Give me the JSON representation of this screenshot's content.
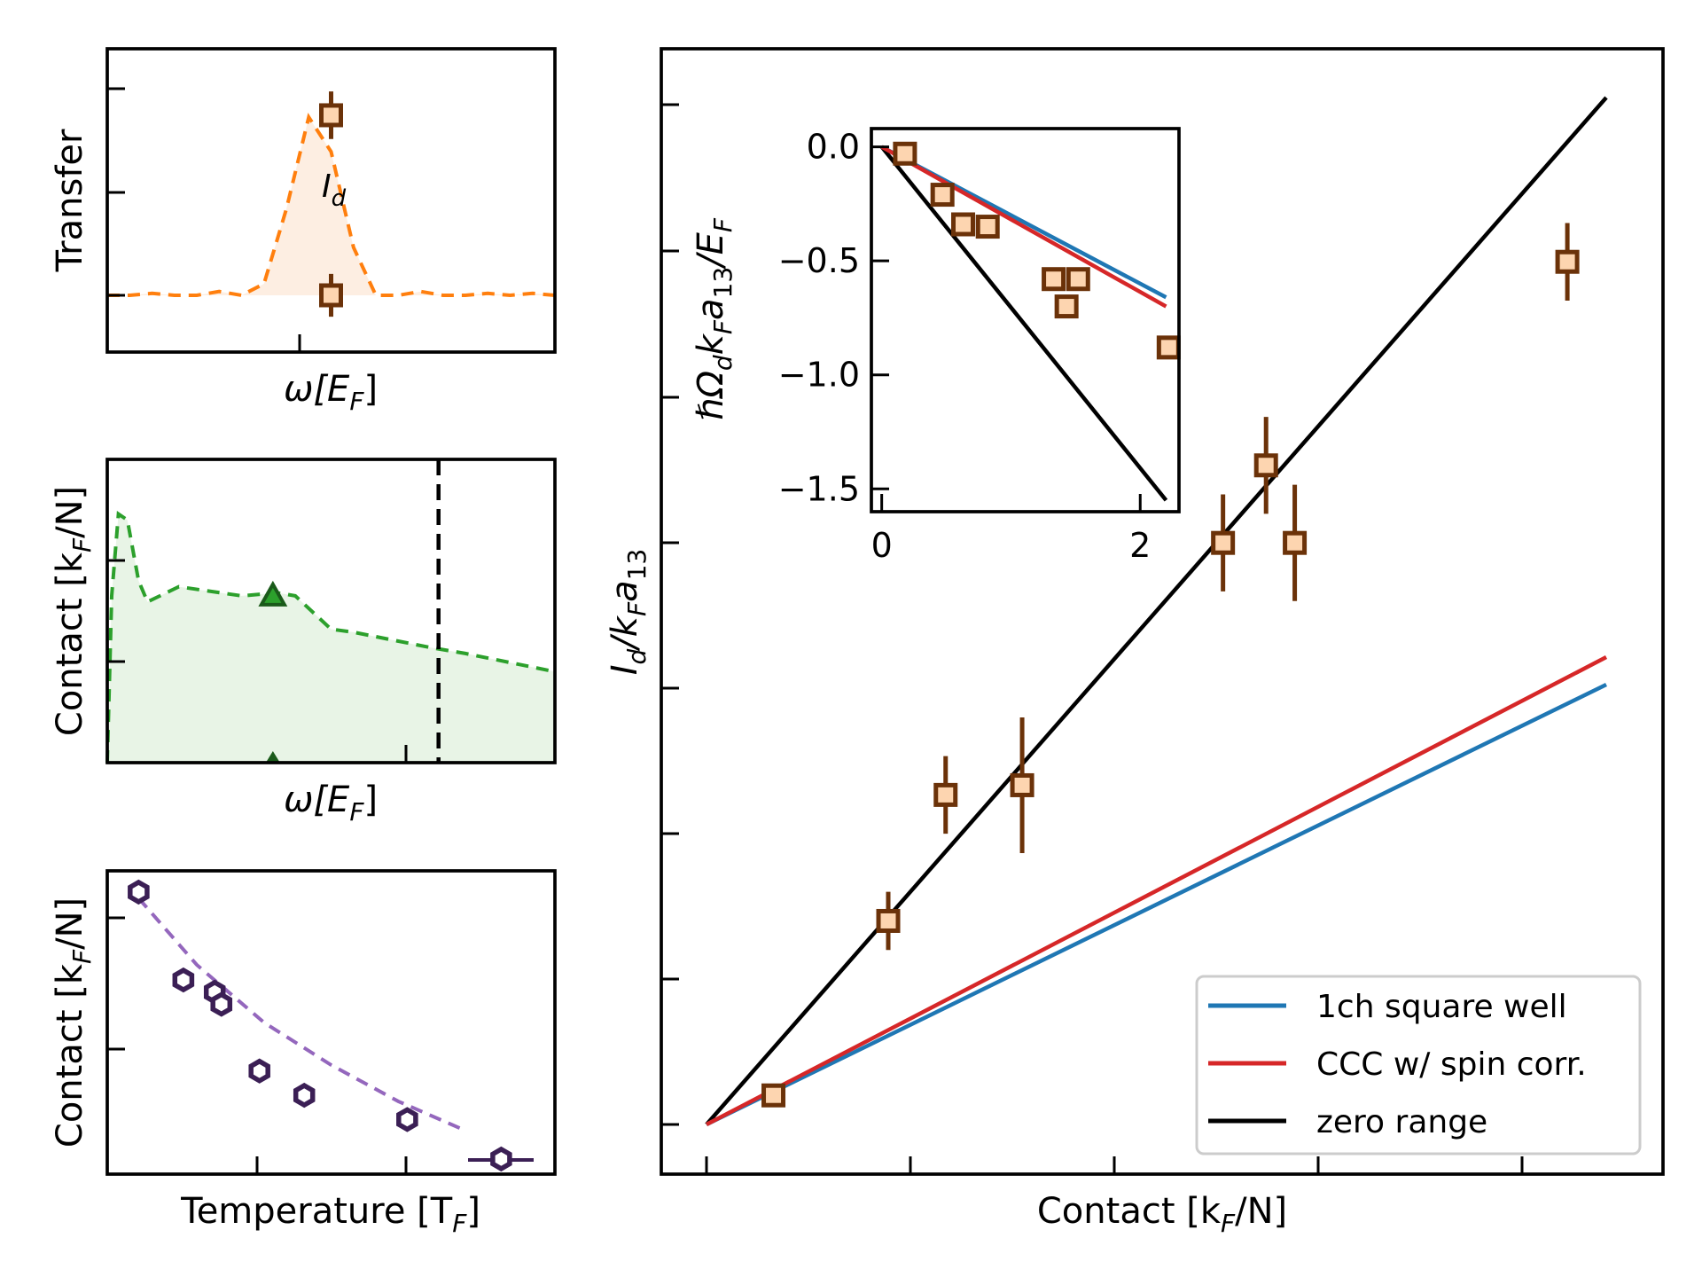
{
  "colors": {
    "orange": "#ff7f0e",
    "orange_fill": "#fdeee2",
    "green": "#2ca02c",
    "green_fill": "#e8f4e6",
    "dark_green": "#1a5a1a",
    "purple": "#9467bd",
    "hex_marker": "#3b1f55",
    "marker_edge": "#6b3209",
    "marker_face": "#fdd5b0",
    "blue": "#1f77b4",
    "red": "#d62728",
    "black": "#000000"
  },
  "panel_a": {
    "ylabel": "Transfer",
    "xlabel_main": "ω[E",
    "xlabel_sub": "F",
    "xlabel_end": "]",
    "peak_label_main": "I",
    "peak_label_sub": "d"
  },
  "panel_b": {
    "ylabel_main": "Contact [k",
    "ylabel_sub": "F",
    "ylabel_end": "/N]",
    "xlabel_main": "ω[E",
    "xlabel_sub": "F",
    "xlabel_end": "]"
  },
  "panel_c": {
    "ylabel_main": "Contact [k",
    "ylabel_sub": "F",
    "ylabel_end": "/N]",
    "xlabel_main": "Temperature [T",
    "xlabel_sub": "F",
    "xlabel_end": "]"
  },
  "main_panel": {
    "xlabel_main": "Contact [k",
    "xlabel_sub": "F",
    "xlabel_end": "/N]",
    "ylabel_parts": [
      "I",
      "d",
      "/k",
      "F",
      "a",
      "13"
    ]
  },
  "inset": {
    "ylabel_parts": [
      "ℏΩ",
      "d",
      "k",
      "F",
      "a",
      "13",
      "/E",
      "F"
    ]
  },
  "legend": [
    {
      "label": "1ch square well",
      "color": "#1f77b4"
    },
    {
      "label": "CCC w/ spin corr.",
      "color": "#d62728"
    },
    {
      "label": "zero range",
      "color": "#000000"
    }
  ],
  "chart_data": [
    {
      "type": "line",
      "panel": "transfer spectrum",
      "ylabel": "Transfer",
      "xlabel": "ω[E_F]",
      "x": [
        0,
        0.05,
        0.1,
        0.15,
        0.2,
        0.25,
        0.3,
        0.35,
        0.4,
        0.45,
        0.5,
        0.55,
        0.6,
        0.65,
        0.7,
        0.75,
        0.8,
        0.85,
        0.9,
        0.95,
        1.0
      ],
      "y": [
        0.0,
        0.0,
        0.01,
        0.0,
        0.0,
        0.02,
        0.0,
        0.06,
        0.45,
        0.93,
        0.75,
        0.25,
        0.0,
        0.0,
        0.02,
        0.0,
        0.0,
        0.01,
        0.0,
        0.01,
        0.0
      ],
      "points": [
        {
          "x": 0.5,
          "y": 0.94,
          "yerr": 0.2
        },
        {
          "x": 0.5,
          "y": 0.0,
          "yerr": 0.18
        }
      ],
      "annotation": "I_d"
    },
    {
      "type": "area",
      "panel": "contact spectrum",
      "ylabel": "Contact [k_F/N]",
      "xlabel": "ω[E_F]",
      "x": [
        0.0,
        0.01,
        0.025,
        0.045,
        0.07,
        0.09,
        0.16,
        0.3,
        0.38,
        0.42,
        0.5,
        0.55,
        0.72,
        0.8,
        1.0
      ],
      "y": [
        0.0,
        0.55,
        0.82,
        0.8,
        0.6,
        0.53,
        0.58,
        0.55,
        0.56,
        0.55,
        0.44,
        0.43,
        0.38,
        0.36,
        0.3
      ],
      "points": [
        {
          "x": 0.37,
          "y": 0.55,
          "marker": "triangle"
        },
        {
          "x": 0.37,
          "y": 0.0,
          "marker": "triangle-small"
        }
      ],
      "vline_x": 0.74
    },
    {
      "type": "scatter",
      "panel": "contact vs temperature",
      "ylabel": "Contact [k_F/N]",
      "xlabel": "Temperature [T_F]",
      "x": [
        0.07,
        0.17,
        0.24,
        0.255,
        0.34,
        0.44,
        0.67,
        0.88
      ],
      "y": [
        0.93,
        0.64,
        0.6,
        0.56,
        0.34,
        0.26,
        0.18,
        0.05
      ],
      "fit_x": [
        0.07,
        0.2,
        0.35,
        0.5,
        0.65,
        0.79
      ],
      "fit_y": [
        0.91,
        0.69,
        0.5,
        0.36,
        0.24,
        0.15
      ]
    },
    {
      "type": "scatter",
      "panel": "main",
      "xlabel": "Contact [k_F/N]",
      "ylabel": "I_d/k_F a_13",
      "points": [
        {
          "x": 0.07,
          "y": 0.03,
          "yerr": 0.01
        },
        {
          "x": 0.19,
          "y": 0.21,
          "yerr": 0.03
        },
        {
          "x": 0.25,
          "y": 0.34,
          "yerr": 0.04
        },
        {
          "x": 0.33,
          "y": 0.35,
          "yerr": 0.07
        },
        {
          "x": 0.54,
          "y": 0.6,
          "yerr": 0.05
        },
        {
          "x": 0.585,
          "y": 0.68,
          "yerr": 0.05
        },
        {
          "x": 0.615,
          "y": 0.6,
          "yerr": 0.06
        },
        {
          "x": 0.9,
          "y": 0.89,
          "yerr": 0.04
        }
      ],
      "series": [
        {
          "name": "1ch square well",
          "x": [
            0,
            0.9
          ],
          "y": [
            0,
            0.6
          ]
        },
        {
          "name": "CCC w/ spin corr.",
          "x": [
            0,
            0.9
          ],
          "y": [
            0,
            0.63
          ]
        },
        {
          "name": "zero range",
          "x": [
            0,
            0.9
          ],
          "y": [
            0,
            1.3
          ]
        }
      ]
    },
    {
      "type": "scatter",
      "panel": "inset",
      "ylabel": "ℏΩ_d k_F a_13/E_F",
      "xticks": [
        0,
        2
      ],
      "yticks": [
        0.0,
        -0.5,
        -1.0,
        -1.5
      ],
      "xlim": [
        -0.08,
        2.3
      ],
      "ylim": [
        -1.6,
        0.08
      ],
      "points": [
        {
          "x": 0.18,
          "y": -0.03
        },
        {
          "x": 0.47,
          "y": -0.21
        },
        {
          "x": 0.63,
          "y": -0.34
        },
        {
          "x": 0.82,
          "y": -0.35
        },
        {
          "x": 1.33,
          "y": -0.58
        },
        {
          "x": 1.43,
          "y": -0.7
        },
        {
          "x": 1.52,
          "y": -0.58
        },
        {
          "x": 2.22,
          "y": -0.88
        }
      ],
      "series": [
        {
          "name": "1ch square well",
          "x": [
            0,
            2.2
          ],
          "y": [
            0,
            -0.66
          ]
        },
        {
          "name": "CCC w/ spin corr.",
          "x": [
            0,
            2.2
          ],
          "y": [
            0,
            -0.7
          ]
        },
        {
          "name": "zero range",
          "x": [
            0,
            2.2
          ],
          "y": [
            0,
            -1.55
          ]
        }
      ]
    }
  ]
}
